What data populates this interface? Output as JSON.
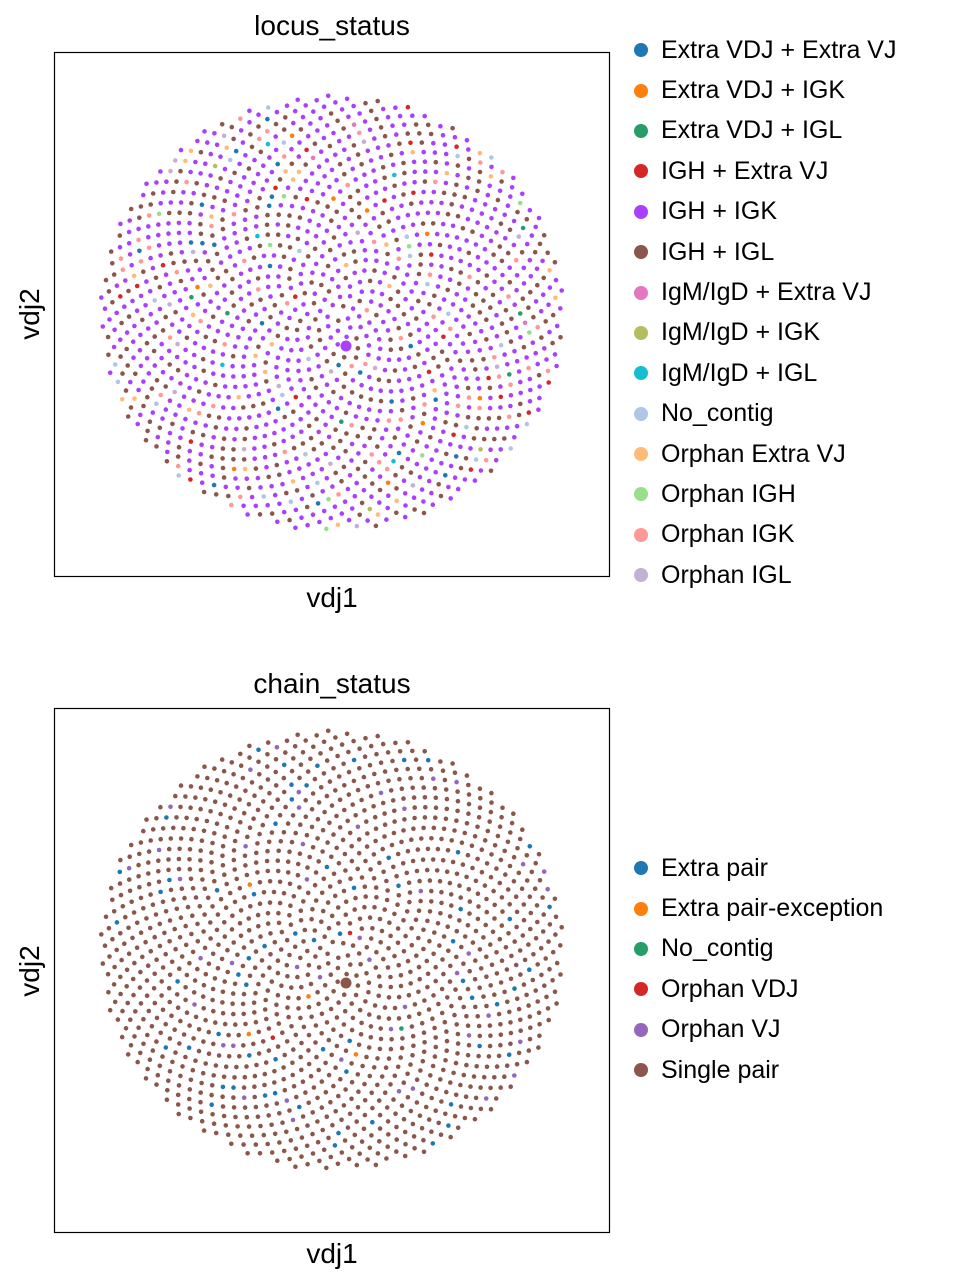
{
  "chart_data": [
    {
      "type": "scatter",
      "title": "locus_status",
      "xlabel": "vdj1",
      "ylabel": "vdj2",
      "grid": false,
      "ticks": false,
      "legend": "right",
      "layout": "circular point cloud with one enlarged center point",
      "n_points": 1500,
      "center_category": "IGH + IGK",
      "categories": [
        {
          "name": "Extra VDJ + Extra VJ",
          "color": "#1f77b4",
          "share": 0.01
        },
        {
          "name": "Extra VDJ + IGK",
          "color": "#ff7f0e",
          "share": 0.004
        },
        {
          "name": "Extra VDJ + IGL",
          "color": "#279e68",
          "share": 0.004
        },
        {
          "name": "IGH + Extra VJ",
          "color": "#d62728",
          "share": 0.022
        },
        {
          "name": "IGH + IGK",
          "color": "#aa40fc",
          "share": 0.56
        },
        {
          "name": "IGH + IGL",
          "color": "#8c564b",
          "share": 0.3
        },
        {
          "name": "IgM/IgD + Extra VJ",
          "color": "#e377c2",
          "share": 0.002
        },
        {
          "name": "IgM/IgD + IGK",
          "color": "#b5bd61",
          "share": 0.003
        },
        {
          "name": "IgM/IgD + IGL",
          "color": "#17becf",
          "share": 0.003
        },
        {
          "name": "No_contig",
          "color": "#aec7e8",
          "share": 0.015
        },
        {
          "name": "Orphan Extra VJ",
          "color": "#ffbb78",
          "share": 0.02
        },
        {
          "name": "Orphan IGH",
          "color": "#98df8a",
          "share": 0.004
        },
        {
          "name": "Orphan IGK",
          "color": "#ff9896",
          "share": 0.04
        },
        {
          "name": "Orphan IGL",
          "color": "#c5b0d5",
          "share": 0.013
        }
      ]
    },
    {
      "type": "scatter",
      "title": "chain_status",
      "xlabel": "vdj1",
      "ylabel": "vdj2",
      "grid": false,
      "ticks": false,
      "legend": "right",
      "layout": "circular point cloud with one enlarged center point",
      "n_points": 1500,
      "center_category": "Single pair",
      "categories": [
        {
          "name": "Extra pair",
          "color": "#1f77b4",
          "share": 0.05
        },
        {
          "name": "Extra pair-exception",
          "color": "#ff7f0e",
          "share": 0.004
        },
        {
          "name": "No_contig",
          "color": "#279e68",
          "share": 0.001
        },
        {
          "name": "Orphan VDJ",
          "color": "#d62728",
          "share": 0.001
        },
        {
          "name": "Orphan VJ",
          "color": "#9467bd",
          "share": 0.03
        },
        {
          "name": "Single pair",
          "color": "#8c564b",
          "share": 0.914
        }
      ]
    }
  ]
}
